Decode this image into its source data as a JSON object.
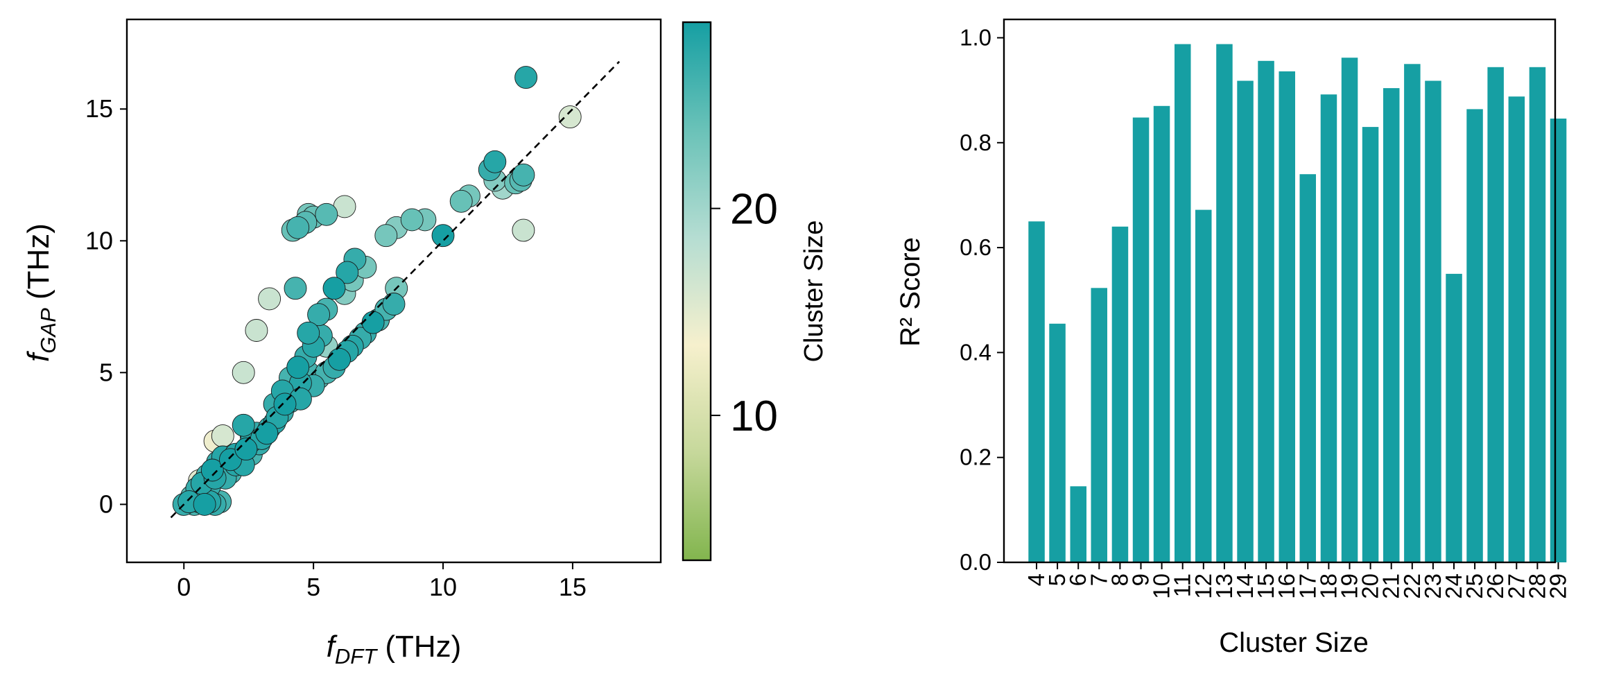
{
  "chart_data": [
    {
      "type": "scatter",
      "xlabel_main": "f",
      "xlabel_sub": "DFT",
      "xlabel_unit": " (THz)",
      "ylabel_main": "f",
      "ylabel_sub": "GAP",
      "ylabel_unit": " (THz)",
      "xlim": [
        -2.2,
        18.4
      ],
      "ylim": [
        -2.2,
        18.4
      ],
      "xticks": [
        0,
        5,
        10,
        15
      ],
      "yticks": [
        0,
        5,
        10,
        15
      ],
      "reference_line": {
        "from": [
          -0.5,
          -0.5
        ],
        "to": [
          16.8,
          16.8
        ],
        "style": "dashed"
      },
      "colorbar": {
        "label": "Cluster Size",
        "range": [
          3,
          29
        ],
        "ticks": [
          10,
          20
        ],
        "colormap": [
          "#82b54e",
          "#c6d89b",
          "#f6f0cd",
          "#b5ddd2",
          "#6ac2b8",
          "#169fa3"
        ]
      },
      "points": [
        [
          0,
          0,
          27
        ],
        [
          0.2,
          0.1,
          28
        ],
        [
          0.4,
          0.0,
          26
        ],
        [
          0.6,
          0.1,
          27
        ],
        [
          0.8,
          0.0,
          29
        ],
        [
          1.0,
          0.1,
          28
        ],
        [
          1.2,
          0.0,
          27
        ],
        [
          1.4,
          0.1,
          26
        ],
        [
          0.3,
          0.3,
          25
        ],
        [
          0.5,
          0.6,
          27
        ],
        [
          0.7,
          0.8,
          28
        ],
        [
          0.9,
          1.1,
          26
        ],
        [
          1.1,
          1.3,
          29
        ],
        [
          1.3,
          1.6,
          27
        ],
        [
          1.5,
          1.8,
          28
        ],
        [
          0.8,
          0.5,
          24
        ],
        [
          1.0,
          0.7,
          27
        ],
        [
          1.2,
          1.0,
          28
        ],
        [
          1.4,
          1.2,
          26
        ],
        [
          1.6,
          1.4,
          27
        ],
        [
          1.8,
          1.7,
          29
        ],
        [
          2.0,
          1.9,
          28
        ],
        [
          1.6,
          1.0,
          27
        ],
        [
          1.8,
          1.2,
          26
        ],
        [
          2.0,
          1.5,
          28
        ],
        [
          2.2,
          1.8,
          27
        ],
        [
          2.4,
          2.1,
          29
        ],
        [
          2.6,
          2.4,
          28
        ],
        [
          2.8,
          2.7,
          27
        ],
        [
          2.3,
          1.5,
          28
        ],
        [
          2.6,
          1.9,
          26
        ],
        [
          2.9,
          2.3,
          27
        ],
        [
          3.2,
          2.7,
          29
        ],
        [
          3.5,
          3.1,
          28
        ],
        [
          3.8,
          3.5,
          27
        ],
        [
          4.1,
          3.9,
          26
        ],
        [
          3.0,
          2.5,
          28
        ],
        [
          3.3,
          2.9,
          27
        ],
        [
          3.6,
          3.3,
          28
        ],
        [
          3.9,
          3.8,
          29
        ],
        [
          4.2,
          4.2,
          27
        ],
        [
          4.5,
          4.6,
          28
        ],
        [
          4.8,
          5.0,
          26
        ],
        [
          3.5,
          3.8,
          27
        ],
        [
          3.8,
          4.3,
          28
        ],
        [
          4.1,
          4.8,
          26
        ],
        [
          4.4,
          5.2,
          29
        ],
        [
          4.7,
          5.6,
          27
        ],
        [
          5.0,
          6.0,
          28
        ],
        [
          5.3,
          6.4,
          27
        ],
        [
          4.5,
          4.0,
          28
        ],
        [
          5.0,
          4.5,
          27
        ],
        [
          5.5,
          5.0,
          26
        ],
        [
          6.0,
          5.5,
          29
        ],
        [
          6.5,
          6.0,
          28
        ],
        [
          7.0,
          6.5,
          27
        ],
        [
          7.5,
          7.0,
          26
        ],
        [
          5.2,
          4.8,
          25
        ],
        [
          5.8,
          5.2,
          27
        ],
        [
          6.3,
          5.8,
          28
        ],
        [
          6.8,
          6.3,
          27
        ],
        [
          7.3,
          6.9,
          29
        ],
        [
          7.8,
          7.4,
          26
        ],
        [
          8.1,
          7.6,
          27
        ],
        [
          4.8,
          6.5,
          28
        ],
        [
          5.2,
          7.2,
          27
        ],
        [
          5.5,
          7.4,
          26
        ],
        [
          5.8,
          8.2,
          29
        ],
        [
          6.3,
          8.8,
          28
        ],
        [
          6.6,
          9.3,
          27
        ],
        [
          4.3,
          8.2,
          26
        ],
        [
          2.3,
          3.0,
          28
        ],
        [
          2.6,
          2.6,
          22
        ],
        [
          2.8,
          2.3,
          11
        ],
        [
          3.0,
          2.6,
          9
        ],
        [
          1.2,
          2.4,
          14
        ],
        [
          1.5,
          2.6,
          16
        ],
        [
          0.6,
          0.9,
          15
        ],
        [
          2.3,
          5.0,
          17
        ],
        [
          2.8,
          6.6,
          17
        ],
        [
          3.3,
          7.8,
          17
        ],
        [
          4.2,
          10.4,
          24
        ],
        [
          4.4,
          10.5,
          26
        ],
        [
          4.7,
          10.7,
          25
        ],
        [
          4.8,
          11.0,
          23
        ],
        [
          5.0,
          10.9,
          24
        ],
        [
          5.5,
          11.0,
          25
        ],
        [
          6.2,
          11.3,
          17
        ],
        [
          7.8,
          10.2,
          23
        ],
        [
          8.2,
          10.5,
          22
        ],
        [
          8.8,
          10.8,
          24
        ],
        [
          9.3,
          10.8,
          23
        ],
        [
          10.0,
          10.2,
          29
        ],
        [
          10.7,
          11.5,
          24
        ],
        [
          11.0,
          11.7,
          23
        ],
        [
          11.8,
          12.7,
          27
        ],
        [
          12.0,
          13.0,
          28
        ],
        [
          12.0,
          12.3,
          22
        ],
        [
          12.3,
          12.0,
          20
        ],
        [
          12.8,
          12.2,
          24
        ],
        [
          13.0,
          12.3,
          25
        ],
        [
          13.1,
          12.5,
          26
        ],
        [
          13.1,
          10.4,
          17
        ],
        [
          13.2,
          16.2,
          28
        ],
        [
          14.9,
          14.7,
          16
        ],
        [
          6.2,
          8.0,
          22
        ],
        [
          6.5,
          8.5,
          23
        ],
        [
          7.0,
          9.0,
          23
        ],
        [
          7.8,
          7.4,
          24
        ],
        [
          8.2,
          8.2,
          23
        ],
        [
          7.5,
          7.0,
          22
        ],
        [
          5.5,
          6.0,
          21
        ]
      ]
    },
    {
      "type": "bar",
      "xlabel": "Cluster Size",
      "ylabel": "R² Score",
      "ylim": [
        0,
        1.035
      ],
      "yticks": [
        "0.0",
        "0.2",
        "0.4",
        "0.6",
        "0.8",
        "1.0"
      ],
      "color": "#169fa3",
      "categories": [
        "4",
        "5",
        "6",
        "7",
        "8",
        "9",
        "10",
        "11",
        "12",
        "13",
        "14",
        "15",
        "16",
        "17",
        "18",
        "19",
        "20",
        "21",
        "22",
        "23",
        "24",
        "25",
        "26",
        "27",
        "28",
        "29"
      ],
      "values": [
        0.65,
        0.455,
        0.145,
        0.523,
        0.64,
        0.848,
        0.87,
        0.988,
        0.672,
        0.988,
        0.918,
        0.956,
        0.936,
        0.74,
        0.892,
        0.962,
        0.83,
        0.904,
        0.95,
        0.918,
        0.55,
        0.864,
        0.944,
        0.888,
        0.944,
        0.846
      ]
    }
  ]
}
